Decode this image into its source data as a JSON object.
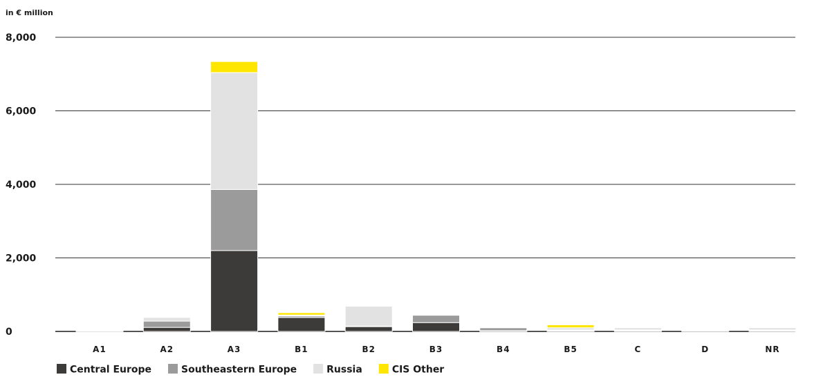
{
  "chart_data": {
    "type": "bar",
    "stacked": true,
    "unit_label": "in € million",
    "categories": [
      "A1",
      "A2",
      "A3",
      "B1",
      "B2",
      "B3",
      "B4",
      "B5",
      "C",
      "D",
      "NR"
    ],
    "series": [
      {
        "name": "Central Europe",
        "color": "#3c3b39",
        "values": [
          5,
          110,
          2200,
          380,
          130,
          240,
          20,
          20,
          20,
          20,
          20
        ]
      },
      {
        "name": "Southeastern Europe",
        "color": "#9b9b9b",
        "values": [
          5,
          170,
          1660,
          40,
          15,
          200,
          80,
          20,
          20,
          15,
          20
        ]
      },
      {
        "name": "Russia",
        "color": "#e2e2e2",
        "values": [
          5,
          100,
          3180,
          25,
          540,
          10,
          10,
          60,
          60,
          10,
          60
        ]
      },
      {
        "name": "CIS Other",
        "color": "#ffe600",
        "values": [
          5,
          0,
          300,
          65,
          0,
          0,
          0,
          80,
          0,
          0,
          0
        ]
      }
    ],
    "ylim": [
      0,
      8000
    ],
    "yticks": [
      0,
      2000,
      4000,
      6000,
      8000
    ],
    "ytick_labels": [
      "0",
      "2,000",
      "4,000",
      "6,000",
      "8,000"
    ],
    "grid": true,
    "legend_position": "bottom-left"
  }
}
